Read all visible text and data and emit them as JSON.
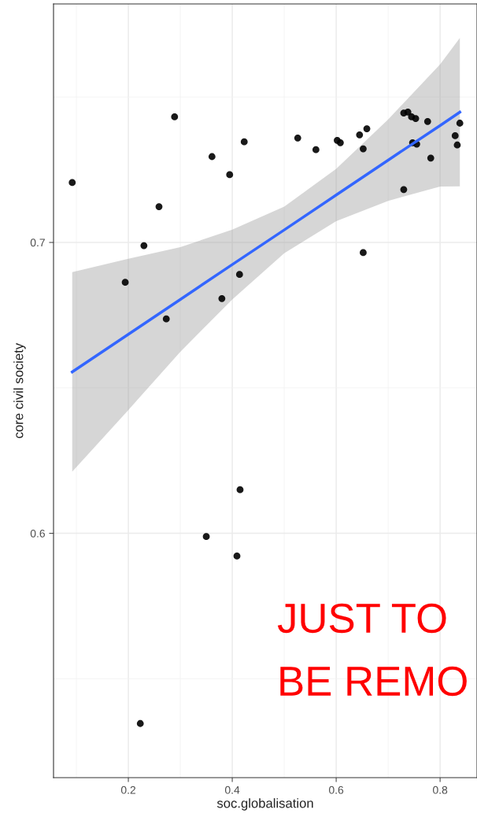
{
  "chart_data": {
    "type": "scatter",
    "xlabel": "soc.globalisation",
    "ylabel": "core civil society",
    "xlim": [
      0.056,
      0.871
    ],
    "ylim": [
      0.516,
      0.782
    ],
    "xticks": [
      0.2,
      0.4,
      0.6,
      0.8
    ],
    "yticks": [
      0.6,
      0.7
    ],
    "grid": true,
    "annotations": [
      "JUST TO",
      "BE REMO"
    ],
    "series": [
      {
        "marker": "circle",
        "color": "#000000",
        "x": [
          0.092,
          0.194,
          0.23,
          0.259,
          0.273,
          0.289,
          0.223,
          0.35,
          0.361,
          0.38,
          0.395,
          0.414,
          0.415,
          0.409,
          0.423,
          0.526,
          0.561,
          0.602,
          0.608,
          0.652,
          0.645,
          0.652,
          0.659,
          0.73,
          0.73,
          0.738,
          0.745,
          0.753,
          0.747,
          0.755,
          0.776,
          0.782,
          0.829,
          0.833,
          0.838
        ],
        "values": [
          0.7206,
          0.6863,
          0.6989,
          0.7123,
          0.6737,
          0.7432,
          0.5346,
          0.5989,
          0.7295,
          0.6807,
          0.7233,
          0.689,
          0.615,
          0.5922,
          0.7346,
          0.7359,
          0.7319,
          0.7351,
          0.7343,
          0.6965,
          0.737,
          0.7322,
          0.7391,
          0.7182,
          0.7445,
          0.7448,
          0.7432,
          0.7426,
          0.7343,
          0.7338,
          0.7416,
          0.729,
          0.7367,
          0.7335,
          0.741
        ]
      },
      {
        "type": "line",
        "color": "#3366ff",
        "x": [
          0.092,
          0.2,
          0.3,
          0.4,
          0.5,
          0.6,
          0.7,
          0.8,
          0.838
        ],
        "values": [
          0.6555,
          0.6684,
          0.6804,
          0.6924,
          0.7043,
          0.7163,
          0.7283,
          0.7402,
          0.7448
        ],
        "lower": [
          0.6212,
          0.6424,
          0.6624,
          0.6804,
          0.6963,
          0.7073,
          0.7143,
          0.7192,
          0.7193
        ],
        "upper": [
          0.6898,
          0.6944,
          0.6984,
          0.7044,
          0.7123,
          0.7253,
          0.7423,
          0.7612,
          0.7703
        ]
      }
    ]
  }
}
